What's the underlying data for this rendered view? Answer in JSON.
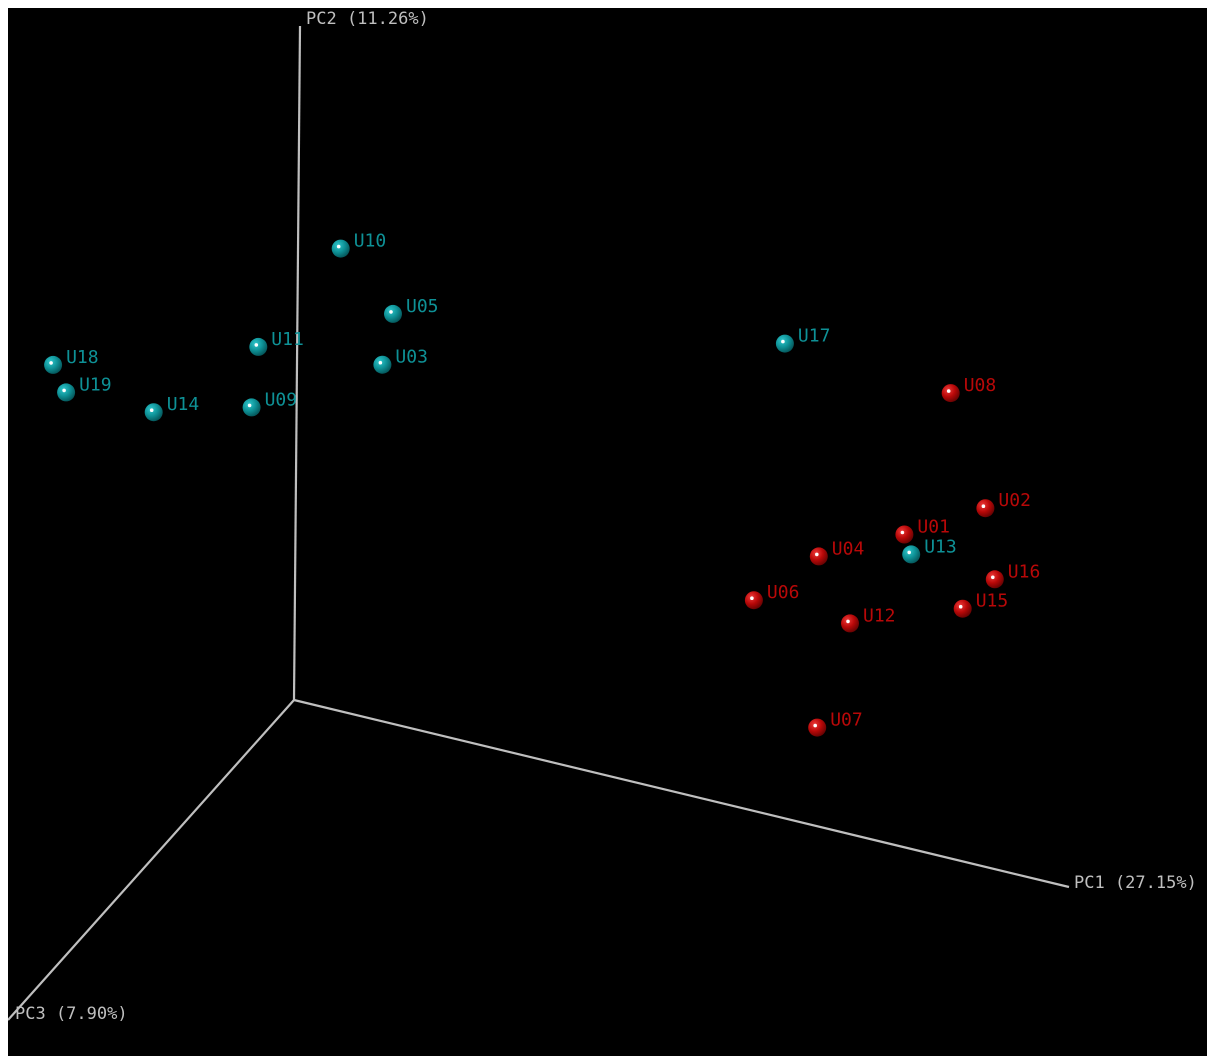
{
  "chart_data": {
    "type": "scatter",
    "projection": "3d",
    "axes": [
      {
        "id": "PC1",
        "label": "PC1 (27.15%)"
      },
      {
        "id": "PC2",
        "label": "PC2 (11.26%)"
      },
      {
        "id": "PC3",
        "label": "PC3 (7.90%)"
      }
    ],
    "grid": false,
    "legend": "none",
    "colors": {
      "background": "#000000",
      "axis": "#bfbfbf",
      "group_teal": "#0e9196",
      "group_red": "#b80808"
    },
    "points": [
      {
        "label": "U17",
        "group": "group_teal",
        "x": 0.628,
        "y": 0.703
      },
      {
        "label": "U10",
        "group": "group_teal",
        "x": 0.055,
        "y": 0.685
      },
      {
        "label": "U05",
        "group": "group_teal",
        "x": 0.123,
        "y": 0.607
      },
      {
        "label": "U03",
        "group": "group_teal",
        "x": 0.11,
        "y": 0.528
      },
      {
        "label": "U11",
        "group": "group_teal",
        "x": -0.05,
        "y": 0.51
      },
      {
        "label": "U09",
        "group": "group_teal",
        "x": -0.058,
        "y": 0.418
      },
      {
        "label": "U18",
        "group": "group_teal",
        "x": -0.314,
        "y": 0.41
      },
      {
        "label": "U19",
        "group": "group_teal",
        "x": -0.297,
        "y": 0.374
      },
      {
        "label": "U14",
        "group": "group_teal",
        "x": -0.184,
        "y": 0.376
      },
      {
        "label": "U13",
        "group": "group_teal",
        "x": 0.793,
        "y": 0.436
      },
      {
        "label": "U08",
        "group": "group_red",
        "x": 0.842,
        "y": 0.689
      },
      {
        "label": "U02",
        "group": "group_red",
        "x": 0.888,
        "y": 0.531
      },
      {
        "label": "U01",
        "group": "group_red",
        "x": 0.784,
        "y": 0.463
      },
      {
        "label": "U04",
        "group": "group_red",
        "x": 0.674,
        "y": 0.4
      },
      {
        "label": "U16",
        "group": "group_red",
        "x": 0.901,
        "y": 0.429
      },
      {
        "label": "U15",
        "group": "group_red",
        "x": 0.86,
        "y": 0.374
      },
      {
        "label": "U06",
        "group": "group_red",
        "x": 0.591,
        "y": 0.312
      },
      {
        "label": "U12",
        "group": "group_red",
        "x": 0.715,
        "y": 0.312
      },
      {
        "label": "U07",
        "group": "group_red",
        "x": 0.674,
        "y": 0.146
      }
    ]
  }
}
